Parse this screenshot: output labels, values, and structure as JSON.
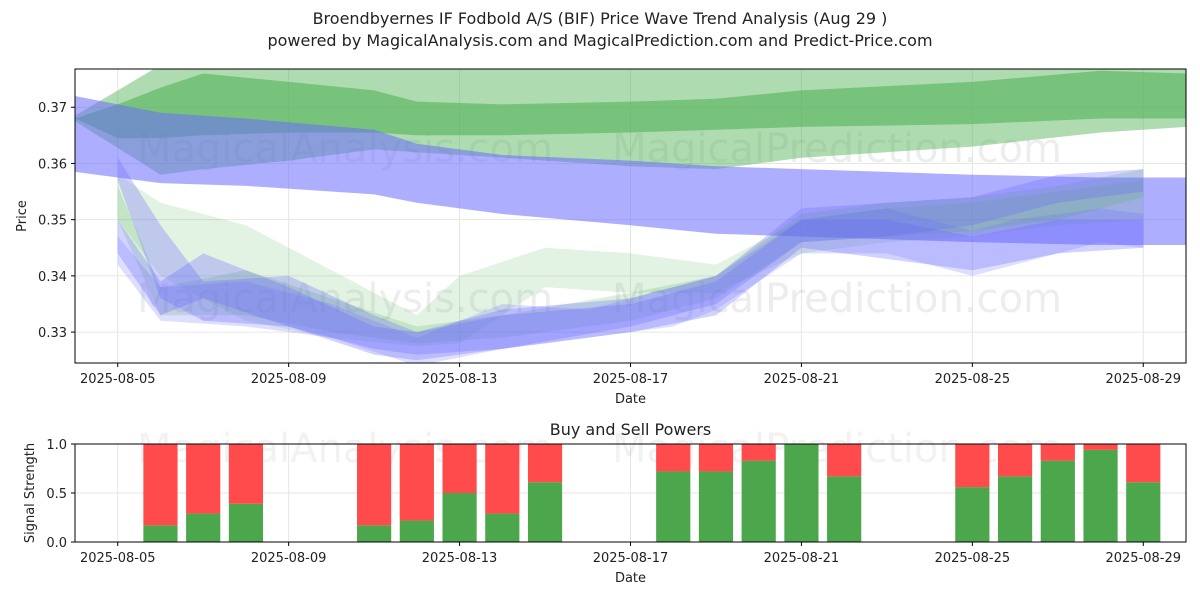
{
  "title": "Broendbyernes IF Fodbold A/S (BIF) Price Wave Trend Analysis (Aug 29 )",
  "subtitle": "powered by MagicalAnalysis.com and MagicalPrediction.com and Predict-Price.com",
  "watermarks": [
    "MagicalAnalysis.com",
    "MagicalPrediction.com"
  ],
  "colors": {
    "green_band": "#4caf50",
    "blue_band": "#6b6bff",
    "buy": "#4ca64c",
    "sell": "#ff4b4b",
    "grid": "#e6e6e6"
  },
  "chart_data": [
    {
      "type": "area",
      "title": "",
      "xlabel": "Date",
      "ylabel": "Price",
      "xlim": [
        "2025-08-04",
        "2025-08-30"
      ],
      "ylim": [
        0.3245,
        0.3768
      ],
      "x_ticks": [
        "2025-08-05",
        "2025-08-09",
        "2025-08-13",
        "2025-08-17",
        "2025-08-21",
        "2025-08-25",
        "2025-08-29"
      ],
      "y_ticks": [
        0.33,
        0.34,
        0.35,
        0.36,
        0.37
      ],
      "grid": true,
      "bands": [
        {
          "color": "green",
          "x": [
            "2025-08-04",
            "2025-08-06",
            "2025-08-07",
            "2025-08-09",
            "2025-08-11",
            "2025-08-12",
            "2025-08-14",
            "2025-08-17",
            "2025-08-19",
            "2025-08-21",
            "2025-08-25",
            "2025-08-28",
            "2025-08-30"
          ],
          "upper": [
            0.3685,
            0.3775,
            0.3775,
            0.3775,
            0.3775,
            0.3775,
            0.3775,
            0.3775,
            0.3775,
            0.3775,
            0.3775,
            0.3775,
            0.3775
          ],
          "lower": [
            0.3675,
            0.358,
            0.359,
            0.3605,
            0.3625,
            0.362,
            0.361,
            0.3595,
            0.359,
            0.361,
            0.363,
            0.3655,
            0.3665
          ]
        },
        {
          "color": "green",
          "x": [
            "2025-08-04",
            "2025-08-05",
            "2025-08-06",
            "2025-08-07",
            "2025-08-09",
            "2025-08-11",
            "2025-08-12",
            "2025-08-14",
            "2025-08-17",
            "2025-08-19",
            "2025-08-21",
            "2025-08-25",
            "2025-08-28",
            "2025-08-30"
          ],
          "upper": [
            0.368,
            0.3705,
            0.3735,
            0.376,
            0.3745,
            0.373,
            0.371,
            0.3705,
            0.371,
            0.3715,
            0.373,
            0.3745,
            0.3765,
            0.376
          ],
          "lower": [
            0.368,
            0.3645,
            0.3645,
            0.365,
            0.3655,
            0.3655,
            0.365,
            0.365,
            0.3655,
            0.366,
            0.3665,
            0.367,
            0.368,
            0.368
          ]
        },
        {
          "color": "blue",
          "x": [
            "2025-08-04",
            "2025-08-06",
            "2025-08-08",
            "2025-08-11",
            "2025-08-12",
            "2025-08-14",
            "2025-08-17",
            "2025-08-19",
            "2025-08-21",
            "2025-08-23",
            "2025-08-25",
            "2025-08-28",
            "2025-08-30"
          ],
          "upper": [
            0.372,
            0.369,
            0.368,
            0.366,
            0.3635,
            0.3615,
            0.3605,
            0.3595,
            0.359,
            0.3585,
            0.358,
            0.3575,
            0.3575
          ],
          "lower": [
            0.3585,
            0.3565,
            0.356,
            0.3545,
            0.353,
            0.351,
            0.349,
            0.3475,
            0.347,
            0.3465,
            0.346,
            0.3455,
            0.3455
          ]
        },
        {
          "color": "green",
          "x": [
            "2025-08-05",
            "2025-08-06",
            "2025-08-08",
            "2025-08-10",
            "2025-08-12",
            "2025-08-13",
            "2025-08-15",
            "2025-08-17",
            "2025-08-19",
            "2025-08-21",
            "2025-08-23",
            "2025-08-25",
            "2025-08-27",
            "2025-08-29"
          ],
          "upper": [
            0.358,
            0.353,
            0.349,
            0.341,
            0.333,
            0.34,
            0.345,
            0.344,
            0.342,
            0.35,
            0.352,
            0.353,
            0.355,
            0.357
          ],
          "lower": [
            0.35,
            0.34,
            0.332,
            0.329,
            0.3275,
            0.328,
            0.338,
            0.337,
            0.337,
            0.344,
            0.346,
            0.347,
            0.349,
            0.35
          ]
        },
        {
          "color": "green",
          "x": [
            "2025-08-05",
            "2025-08-06",
            "2025-08-08",
            "2025-08-10",
            "2025-08-12",
            "2025-08-14",
            "2025-08-17",
            "2025-08-19",
            "2025-08-21",
            "2025-08-23",
            "2025-08-25",
            "2025-08-27",
            "2025-08-29"
          ],
          "upper": [
            0.356,
            0.338,
            0.341,
            0.336,
            0.331,
            0.333,
            0.337,
            0.34,
            0.351,
            0.353,
            0.354,
            0.356,
            0.359
          ],
          "lower": [
            0.35,
            0.333,
            0.333,
            0.33,
            0.328,
            0.329,
            0.332,
            0.336,
            0.346,
            0.347,
            0.348,
            0.35,
            0.354
          ]
        },
        {
          "color": "blue",
          "x": [
            "2025-08-05",
            "2025-08-06",
            "2025-08-07",
            "2025-08-09",
            "2025-08-11",
            "2025-08-12",
            "2025-08-14",
            "2025-08-17",
            "2025-08-19",
            "2025-08-21",
            "2025-08-23",
            "2025-08-25",
            "2025-08-27",
            "2025-08-29"
          ],
          "upper": [
            0.361,
            0.349,
            0.339,
            0.34,
            0.333,
            0.33,
            0.334,
            0.336,
            0.34,
            0.352,
            0.353,
            0.354,
            0.358,
            0.359
          ],
          "lower": [
            0.357,
            0.336,
            0.332,
            0.331,
            0.327,
            0.326,
            0.327,
            0.331,
            0.335,
            0.346,
            0.347,
            0.349,
            0.353,
            0.355
          ]
        },
        {
          "color": "blue",
          "x": [
            "2025-08-05",
            "2025-08-06",
            "2025-08-07",
            "2025-08-09",
            "2025-08-11",
            "2025-08-12",
            "2025-08-14",
            "2025-08-17",
            "2025-08-19",
            "2025-08-21",
            "2025-08-23",
            "2025-08-25",
            "2025-08-27",
            "2025-08-29"
          ],
          "upper": [
            0.35,
            0.339,
            0.344,
            0.338,
            0.331,
            0.33,
            0.333,
            0.335,
            0.339,
            0.35,
            0.35,
            0.347,
            0.35,
            0.35
          ],
          "lower": [
            0.344,
            0.333,
            0.336,
            0.331,
            0.326,
            0.325,
            0.327,
            0.33,
            0.333,
            0.345,
            0.343,
            0.341,
            0.344,
            0.345
          ]
        },
        {
          "color": "blue",
          "x": [
            "2025-08-05",
            "2025-08-06",
            "2025-08-08",
            "2025-08-10",
            "2025-08-12",
            "2025-08-14",
            "2025-08-16",
            "2025-08-18",
            "2025-08-19",
            "2025-08-21",
            "2025-08-23",
            "2025-08-25",
            "2025-08-26",
            "2025-08-28",
            "2025-08-29"
          ],
          "upper": [
            0.347,
            0.338,
            0.339,
            0.335,
            0.329,
            0.335,
            0.334,
            0.338,
            0.34,
            0.35,
            0.352,
            0.348,
            0.35,
            0.352,
            0.351
          ],
          "lower": [
            0.342,
            0.332,
            0.331,
            0.329,
            0.324,
            0.327,
            0.329,
            0.331,
            0.334,
            0.344,
            0.344,
            0.34,
            0.342,
            0.346,
            0.345
          ]
        }
      ]
    },
    {
      "type": "bar",
      "title": "Buy and Sell Powers",
      "xlabel": "Date",
      "ylabel": "Signal Strength",
      "ylim": [
        0,
        1.0
      ],
      "y_ticks": [
        "0.0",
        "0.5",
        "1.0"
      ],
      "x_ticks": [
        "2025-08-05",
        "2025-08-09",
        "2025-08-13",
        "2025-08-17",
        "2025-08-21",
        "2025-08-25",
        "2025-08-29"
      ],
      "grid": true,
      "dates": [
        "2025-08-06",
        "2025-08-07",
        "2025-08-08",
        "2025-08-11",
        "2025-08-12",
        "2025-08-13",
        "2025-08-14",
        "2025-08-15",
        "2025-08-18",
        "2025-08-19",
        "2025-08-20",
        "2025-08-21",
        "2025-08-22",
        "2025-08-25",
        "2025-08-26",
        "2025-08-27",
        "2025-08-28",
        "2025-08-29"
      ],
      "series": [
        {
          "name": "Buy",
          "values": [
            0.17,
            0.29,
            0.39,
            0.17,
            0.22,
            0.5,
            0.29,
            0.61,
            0.72,
            0.72,
            0.83,
            1.0,
            0.67,
            0.56,
            0.67,
            0.83,
            0.94,
            0.61
          ]
        },
        {
          "name": "Sell",
          "values": [
            0.83,
            0.71,
            0.61,
            0.83,
            0.78,
            0.5,
            0.71,
            0.39,
            0.28,
            0.28,
            0.17,
            0.0,
            0.33,
            0.44,
            0.33,
            0.17,
            0.06,
            0.39
          ]
        }
      ]
    }
  ]
}
